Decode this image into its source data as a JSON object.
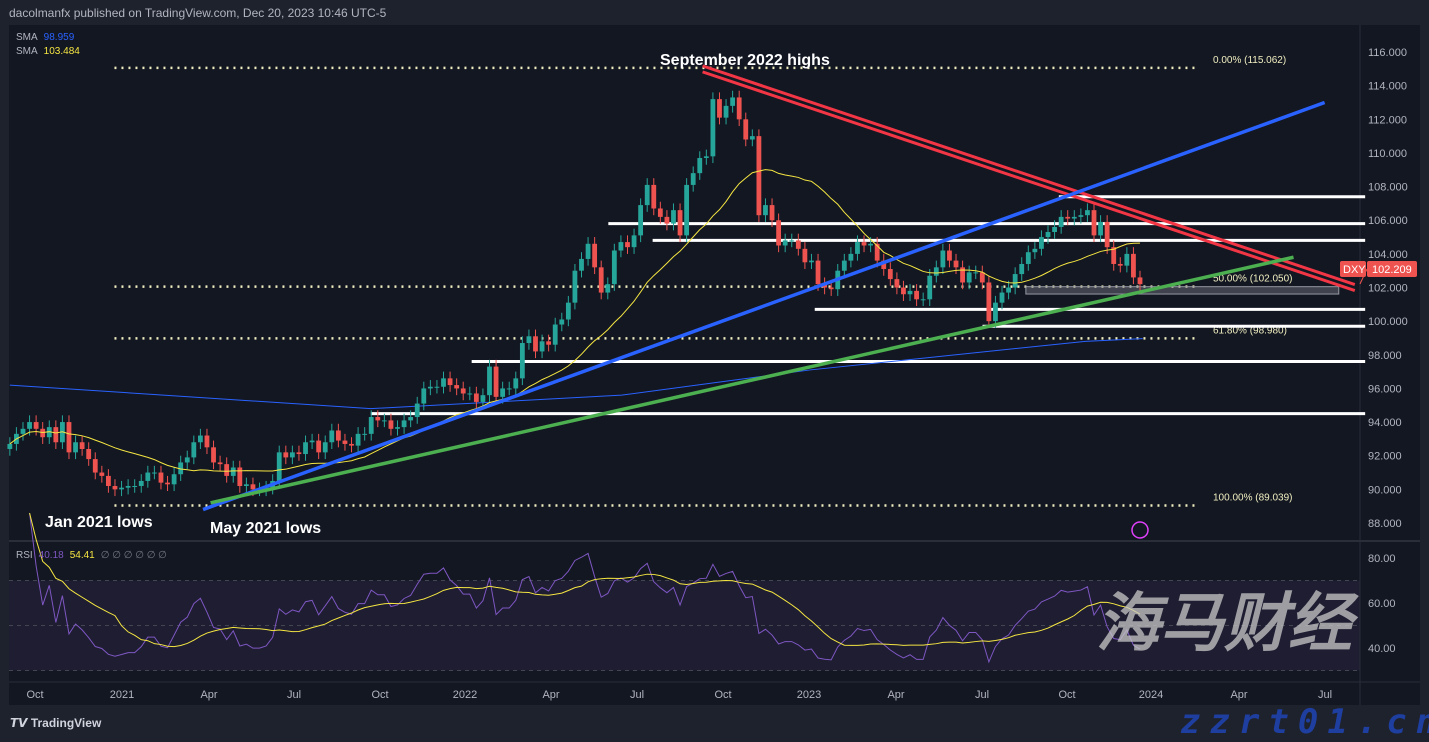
{
  "header": {
    "published": "dacolmanfx published on TradingView.com, Dec 20, 2023 10:46 UTC-5"
  },
  "legend": {
    "sma1_label": "SMA",
    "sma1_value": "98.959",
    "sma2_label": "SMA",
    "sma2_value": "103.484",
    "rsi_label": "RSI",
    "rsi_value": "40.18",
    "rsi_ma_value": "54.41",
    "rsi_extra": "∅ ∅ ∅ ∅ ∅ ∅"
  },
  "footer": {
    "logo": "TradingView"
  },
  "watermark": {
    "line1": "海马财经",
    "line2": "zzrt01.cn"
  },
  "colors": {
    "bg": "#131722",
    "up": "#26a69a",
    "down": "#ef5350",
    "sma1": "#2962ff",
    "sma2": "#f5e642",
    "rsi": "#7e57c2",
    "rsi_ma": "#f5e642",
    "trend_red": "#f23645",
    "trend_blue": "#2962ff",
    "trend_green": "#4caf50"
  },
  "chart_data": {
    "type": "candlestick",
    "symbol": "DXY",
    "last_price": "102.209",
    "interval": "weekly",
    "x_ticks": [
      "Oct",
      "2021",
      "Apr",
      "Jul",
      "Oct",
      "2022",
      "Apr",
      "Jul",
      "Oct",
      "2023",
      "Apr",
      "Jul",
      "Oct",
      "2024",
      "Apr",
      "Jul"
    ],
    "y_ticks": [
      "116.000",
      "114.000",
      "112.000",
      "110.000",
      "108.000",
      "106.000",
      "104.000",
      "102.000",
      "100.000",
      "98.000",
      "96.000",
      "94.000",
      "92.000",
      "90.000",
      "88.000"
    ],
    "ylim": [
      88,
      116
    ],
    "closes": [
      92.7,
      93.3,
      93.6,
      94.0,
      93.6,
      93.1,
      93.7,
      92.8,
      94.0,
      92.2,
      92.8,
      92.4,
      91.8,
      91.0,
      90.8,
      90.2,
      90.0,
      90.1,
      90.2,
      90.2,
      90.5,
      91.0,
      91.0,
      90.4,
      90.3,
      90.9,
      91.6,
      91.9,
      92.8,
      93.2,
      92.5,
      91.6,
      91.5,
      90.8,
      91.3,
      90.2,
      90.3,
      90.0,
      90.0,
      90.1,
      90.5,
      92.2,
      91.9,
      92.2,
      92.1,
      92.8,
      92.9,
      92.2,
      92.8,
      93.5,
      92.9,
      92.7,
      92.6,
      93.3,
      93.3,
      94.3,
      94.1,
      94.1,
      93.6,
      93.7,
      94.1,
      94.3,
      95.1,
      96.0,
      96.1,
      96.1,
      96.6,
      96.2,
      96.0,
      95.7,
      95.7,
      95.2,
      95.6,
      97.3,
      95.5,
      96.0,
      96.0,
      96.6,
      98.7,
      99.1,
      98.2,
      98.8,
      98.6,
      99.8,
      100.1,
      101.1,
      103.0,
      103.7,
      104.6,
      103.2,
      101.7,
      102.2,
      104.2,
      104.7,
      104.4,
      105.1,
      106.9,
      108.1,
      106.7,
      106.2,
      105.8,
      106.6,
      105.1,
      108.1,
      108.8,
      109.7,
      109.8,
      113.2,
      112.1,
      112.8,
      113.3,
      112.0,
      110.8,
      111.0,
      106.3,
      106.9,
      106.0,
      104.5,
      104.8,
      104.8,
      104.3,
      103.5,
      103.6,
      102.2,
      102.0,
      101.9,
      103.0,
      103.6,
      104.0,
      104.7,
      104.5,
      104.6,
      103.6,
      103.1,
      102.5,
      102.0,
      101.6,
      101.8,
      101.3,
      101.3,
      102.7,
      103.2,
      104.2,
      103.6,
      103.2,
      102.3,
      102.9,
      102.9,
      102.3,
      100.0,
      101.1,
      101.7,
      102.0,
      102.8,
      103.4,
      104.1,
      104.3,
      105.0,
      105.3,
      105.6,
      106.2,
      106.1,
      106.2,
      106.3,
      106.6,
      105.1,
      105.9,
      104.4,
      103.4,
      103.3,
      104.0,
      102.6,
      102.2
    ],
    "sma_long": [
      [
        "2020-09-04",
        96.2
      ],
      [
        "2021-09-22",
        94.8
      ],
      [
        "2022-06-15",
        95.6
      ],
      [
        "2023-01-01",
        97.1
      ],
      [
        "2023-10-20",
        98.8
      ],
      [
        "2023-12-20",
        98.959
      ]
    ],
    "rsi": {
      "ylim": [
        20,
        90
      ],
      "ticks": [
        "80.00",
        "60.00",
        "40.00"
      ],
      "band": [
        30,
        70
      ],
      "mid": 50
    },
    "annotations": [
      {
        "text": "September 2022 highs"
      },
      {
        "text": "Jan 2021 lows"
      },
      {
        "text": "May 2021 lows"
      }
    ],
    "fib_levels": [
      {
        "label": "0.00% (115.062)",
        "price": 115.062,
        "from": "2020-12-24",
        "to": "2024-02-18"
      },
      {
        "label": "50.00% (102.050)",
        "price": 102.05,
        "from": "2020-12-24",
        "to": "2024-02-18"
      },
      {
        "label": "61.80% (98.980)",
        "price": 98.98,
        "from": "2020-12-24",
        "to": "2024-02-18"
      },
      {
        "label": "100.00% (89.039)",
        "price": 89.039,
        "from": "2020-12-24",
        "to": "2024-02-18"
      }
    ],
    "horizontal_levels": [
      {
        "price": 107.4,
        "from": "2023-09-22"
      },
      {
        "price": 105.8,
        "from": "2022-06-01"
      },
      {
        "price": 104.8,
        "from": "2022-07-18"
      },
      {
        "price": 100.7,
        "from": "2023-01-06"
      },
      {
        "price": 99.7,
        "from": "2023-07-03"
      },
      {
        "price": 97.6,
        "from": "2022-01-07"
      },
      {
        "price": 94.5,
        "from": "2021-09-22"
      }
    ],
    "trendlines": [
      {
        "color": "red",
        "from": [
          "2022-09-09",
          115.0
        ],
        "to": [
          "2024-08-01",
          102.0
        ]
      },
      {
        "color": "blue",
        "from": [
          "2021-03-28",
          88.8
        ],
        "to": [
          "2024-06-30",
          113.0
        ]
      },
      {
        "color": "green",
        "from": [
          "2021-04-05",
          89.2
        ],
        "to": [
          "2024-05-28",
          103.8
        ]
      }
    ]
  }
}
